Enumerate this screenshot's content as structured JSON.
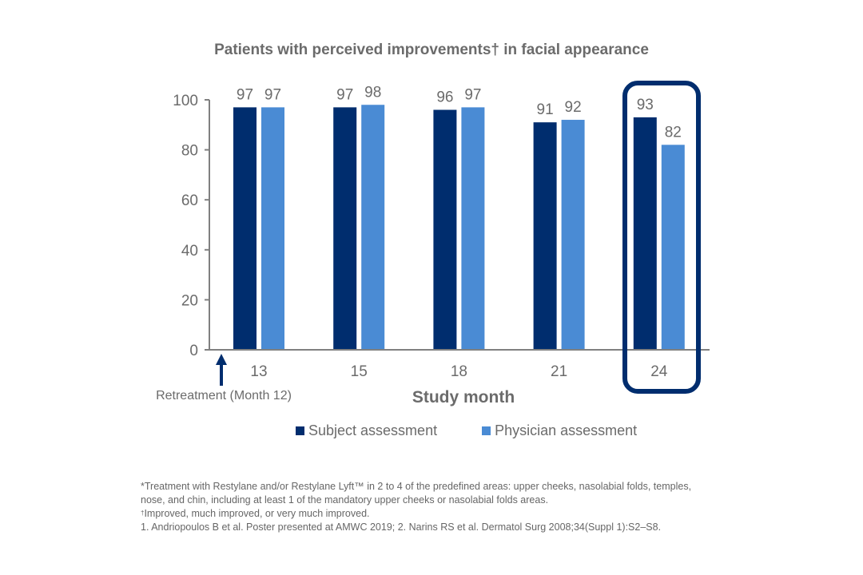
{
  "chart_data": {
    "type": "bar",
    "title": "Patients with perceived improvements† in facial appearance",
    "xlabel": "Study month",
    "ylabel": "",
    "categories": [
      "13",
      "15",
      "18",
      "21",
      "24"
    ],
    "series": [
      {
        "name": "Subject assessment",
        "color": "#002d6e",
        "values": [
          97,
          97,
          96,
          91,
          93
        ]
      },
      {
        "name": "Physician assessment",
        "color": "#4a8bd4",
        "values": [
          97,
          98,
          97,
          92,
          82
        ]
      }
    ],
    "ylim": [
      0,
      100
    ],
    "yticks": [
      0,
      20,
      40,
      60,
      80,
      100
    ],
    "grid": false,
    "legend_position": "bottom",
    "data_labels": true,
    "annotations": [
      {
        "type": "arrow",
        "label": "Retreatment (Month 12)",
        "at_category_before": "13"
      },
      {
        "type": "highlight-box",
        "category": "24",
        "color": "#002d6e"
      }
    ]
  },
  "footnotes": {
    "line1": "*Treatment with Restylane and/or Restylane Lyft™ in 2 to 4 of the predefined areas: upper cheeks, nasolabial folds, temples,",
    "line2": "nose, and chin, including at least 1 of the mandatory upper cheeks or nasolabial folds areas.",
    "line3_mark": "†",
    "line3": "Improved, much improved, or very much improved.",
    "line4": "1. Andriopoulos B et al. Poster presented at AMWC 2019; 2. Narins RS et al. Dermatol Surg 2008;34(Suppl 1):S2–S8."
  },
  "colors": {
    "axis": "#808080",
    "text": "#6b6b6b",
    "subject": "#002d6e",
    "physician": "#4a8bd4",
    "highlight": "#002d6e"
  }
}
